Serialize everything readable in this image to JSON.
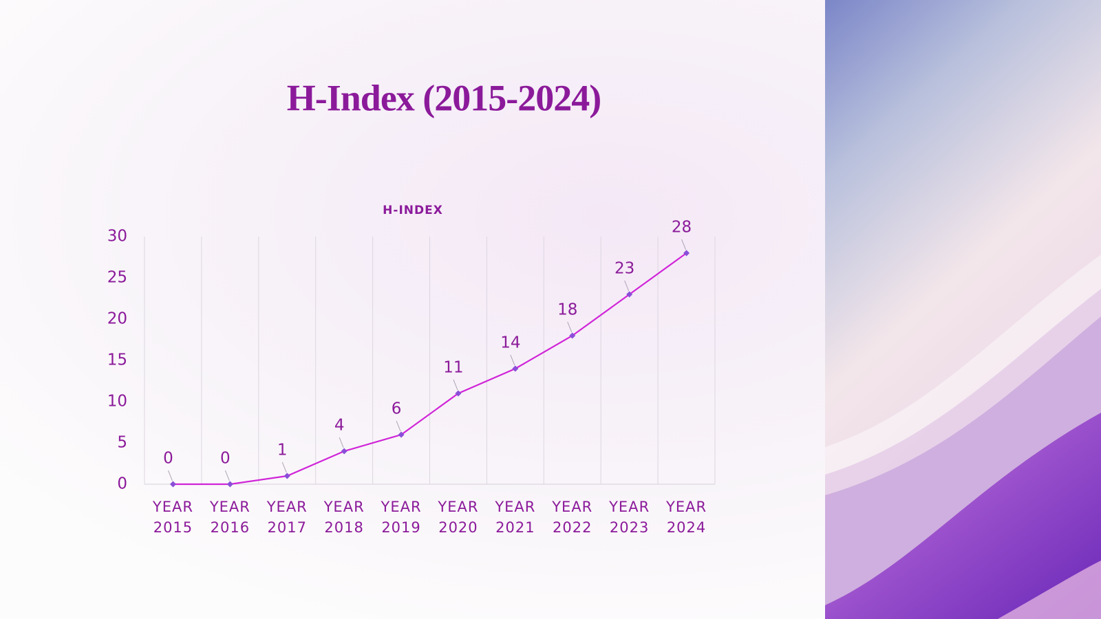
{
  "chart_data": {
    "type": "line",
    "title": "H-Index (2015-2024)",
    "subtitle": "H-INDEX",
    "categories": [
      "YEAR 2015",
      "YEAR 2016",
      "YEAR 2017",
      "YEAR 2018",
      "YEAR 2019",
      "YEAR 2020",
      "YEAR 2021",
      "YEAR 2022",
      "YEAR 2023",
      "YEAR 2024"
    ],
    "series": [
      {
        "name": "H-INDEX",
        "color": "#d024d8",
        "marker_color": "#8a4fd8",
        "values": [
          0,
          0,
          1,
          4,
          6,
          11,
          14,
          18,
          23,
          28
        ]
      }
    ],
    "ylim": [
      0,
      30
    ],
    "yticks": [
      0,
      5,
      10,
      15,
      20,
      25,
      30
    ]
  }
}
